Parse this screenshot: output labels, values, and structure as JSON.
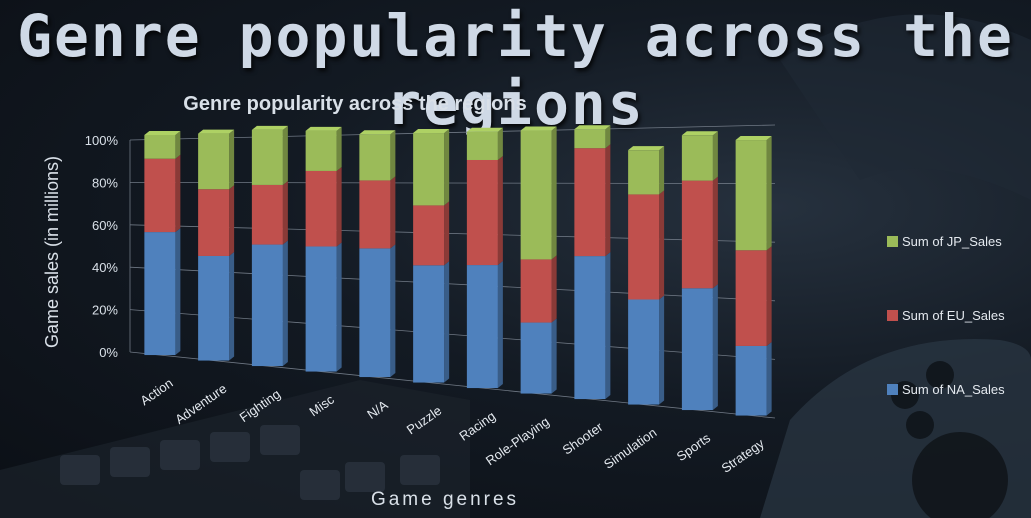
{
  "page_title": "Genre popularity across the regions",
  "chart_data": {
    "type": "bar",
    "stacked": "percent",
    "title": "Genre popularity across the regions",
    "xlabel": "Game genres",
    "ylabel": "Game sales (in millions)",
    "ylim": [
      0,
      100
    ],
    "yticks": [
      "0%",
      "20%",
      "40%",
      "60%",
      "80%",
      "100%"
    ],
    "grid": true,
    "legend_position": "right",
    "categories": [
      "Action",
      "Adventure",
      "Fighting",
      "Misc",
      "N/A",
      "Puzzle",
      "Racing",
      "Role-Playing",
      "Shooter",
      "Simulation",
      "Sports",
      "Strategy"
    ],
    "series": [
      {
        "name": "Sum of NA_Sales",
        "color": "#4f81bd",
        "values": [
          57,
          47,
          53,
          53,
          53,
          47,
          48,
          27,
          53,
          38,
          43,
          24
        ]
      },
      {
        "name": "Sum of EU_Sales",
        "color": "#c0504d",
        "values": [
          34,
          30,
          26,
          32,
          28,
          24,
          41,
          24,
          40,
          38,
          38,
          33
        ]
      },
      {
        "name": "Sum of JP_Sales",
        "color": "#9bbb59",
        "values": [
          11,
          25,
          24,
          17,
          19,
          29,
          11,
          49,
          7,
          16,
          16,
          38
        ]
      }
    ]
  }
}
